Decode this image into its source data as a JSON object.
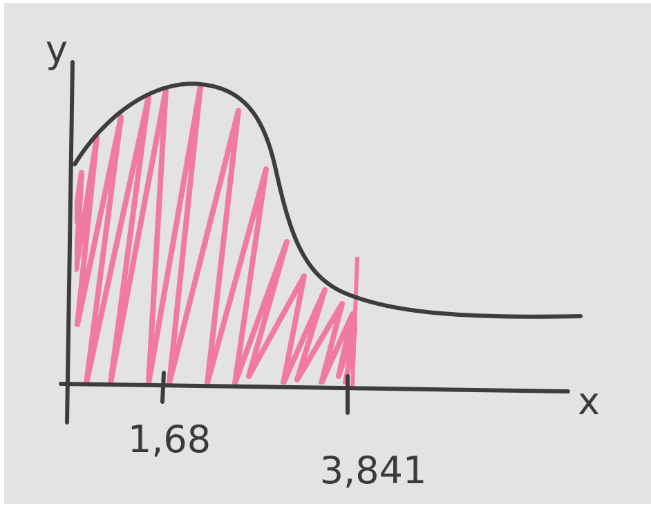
{
  "axes": {
    "y_label": "y",
    "x_label": "x"
  },
  "marks": [
    {
      "label": "1,68"
    },
    {
      "label": "3,841"
    }
  ]
}
